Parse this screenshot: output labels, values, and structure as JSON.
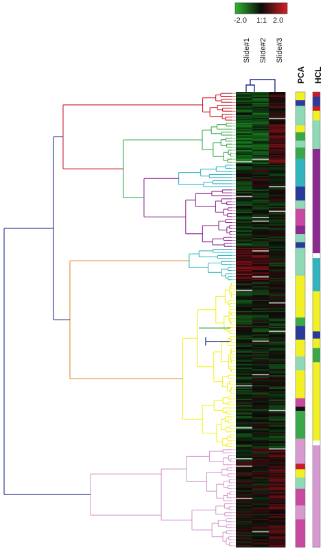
{
  "colors": {
    "root": "#1e2a8a",
    "red": "#c81d2a",
    "green": "#3aa84a",
    "cyan": "#32b4bf",
    "purple": "#8b2a8e",
    "orange": "#e38a28",
    "yellow": "#f1f026",
    "pink": "#d69ad0",
    "navy": "#2a3a9a"
  },
  "color_scale": {
    "min_label": "-2.0",
    "mid_label": "1:1",
    "max_label": "2.0",
    "low_color": "#2fb62f",
    "mid_color": "#0a0a0a",
    "high_color": "#d81f26"
  },
  "heatmap": {
    "columns": [
      "Slide#1",
      "Slide#2",
      "Slide#3"
    ]
  },
  "annotation_columns": [
    "PCA",
    "HCL"
  ],
  "clusters": [
    {
      "id": "red",
      "color_key": "red",
      "rows": 24
    },
    {
      "id": "green",
      "color_key": "green",
      "rows": 34
    },
    {
      "id": "cyan-1",
      "color_key": "cyan",
      "rows": 20
    },
    {
      "id": "purple",
      "color_key": "purple",
      "rows": 48
    },
    {
      "id": "cyan-2",
      "color_key": "cyan",
      "rows": 27
    },
    {
      "id": "yellow",
      "color_key": "yellow",
      "rows": 135
    },
    {
      "id": "pink",
      "color_key": "pink",
      "rows": 80
    }
  ],
  "pca_segments": [
    {
      "color": "#f1f026",
      "rows": 6
    },
    {
      "color": "#2a3a9a",
      "rows": 4
    },
    {
      "color": "#8fd9b6",
      "rows": 14
    },
    {
      "color": "#f1f026",
      "rows": 5
    },
    {
      "color": "#3aa84a",
      "rows": 6
    },
    {
      "color": "#8fd9b6",
      "rows": 5
    },
    {
      "color": "#3aa84a",
      "rows": 8
    },
    {
      "color": "#32b4bf",
      "rows": 20
    },
    {
      "color": "#2a3a9a",
      "rows": 10
    },
    {
      "color": "#8fd9b6",
      "rows": 6
    },
    {
      "color": "#c84aa0",
      "rows": 12
    },
    {
      "color": "#8b2a8e",
      "rows": 6
    },
    {
      "color": "#8fd9b6",
      "rows": 6
    },
    {
      "color": "#2a3a9a",
      "rows": 4
    },
    {
      "color": "#8fd9b6",
      "rows": 20
    },
    {
      "color": "#f1f026",
      "rows": 30
    },
    {
      "color": "#3aa84a",
      "rows": 6
    },
    {
      "color": "#2a3a9a",
      "rows": 10
    },
    {
      "color": "#f1f026",
      "rows": 12
    },
    {
      "color": "#8fd9b6",
      "rows": 10
    },
    {
      "color": "#f1f026",
      "rows": 20
    },
    {
      "color": "#c84aa0",
      "rows": 6
    },
    {
      "color": "#111111",
      "rows": 3
    },
    {
      "color": "#3aa84a",
      "rows": 20
    },
    {
      "color": "#d69ad0",
      "rows": 18
    },
    {
      "color": "#c81d2a",
      "rows": 4
    },
    {
      "color": "#f1f026",
      "rows": 6
    },
    {
      "color": "#8fd9b6",
      "rows": 8
    },
    {
      "color": "#c84aa0",
      "rows": 12
    },
    {
      "color": "#d69ad0",
      "rows": 10
    },
    {
      "color": "#c84aa0",
      "rows": 20
    }
  ],
  "hcl_segments": [
    {
      "color": "#c81d2a",
      "rows": 4
    },
    {
      "color": "#2a3a9a",
      "rows": 8
    },
    {
      "color": "#c81d2a",
      "rows": 4
    },
    {
      "color": "#f1f026",
      "rows": 8
    },
    {
      "color": "#8fd9b6",
      "rows": 24
    },
    {
      "color": "#8b2a8e",
      "rows": 88
    },
    {
      "color": "#ffffff",
      "rows": 4
    },
    {
      "color": "#32b4bf",
      "rows": 28
    },
    {
      "color": "#f1f026",
      "rows": 34
    },
    {
      "color": "#2a3a9a",
      "rows": 6
    },
    {
      "color": "#f1f026",
      "rows": 8
    },
    {
      "color": "#3aa84a",
      "rows": 12
    },
    {
      "color": "#f1f026",
      "rows": 66
    },
    {
      "color": "#ffffff",
      "rows": 4
    },
    {
      "color": "#d69ad0",
      "rows": 86
    }
  ]
}
